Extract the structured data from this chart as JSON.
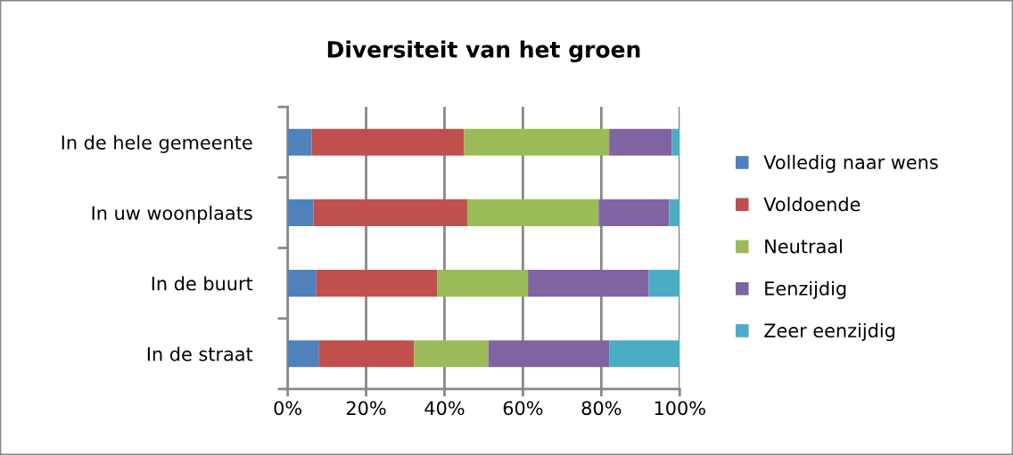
{
  "chart_data": {
    "type": "bar",
    "orientation": "horizontal",
    "stacked": true,
    "title": "Diversiteit van het groen",
    "categories": [
      "In de hele gemeente",
      "In uw woonplaats",
      "In de buurt",
      "In de straat"
    ],
    "series": [
      {
        "name": "Volledig naar wens",
        "color": "#4f81bd",
        "values": [
          6.1,
          6.6,
          7.3,
          8.0
        ]
      },
      {
        "name": "Voldoende",
        "color": "#c0504d",
        "values": [
          38.9,
          39.2,
          30.9,
          24.2
        ]
      },
      {
        "name": "Neutraal",
        "color": "#9bbb59",
        "values": [
          37.0,
          33.5,
          23.1,
          19.0
        ]
      },
      {
        "name": "Eenzijdig",
        "color": "#8064a2",
        "values": [
          16.0,
          18.0,
          30.8,
          30.8
        ]
      },
      {
        "name": "Zeer eenzijdig",
        "color": "#4bacc6",
        "values": [
          2.0,
          2.7,
          7.9,
          18.0
        ]
      }
    ],
    "xlim": [
      0,
      100
    ],
    "xticks": [
      {
        "value": 0,
        "label": "0%"
      },
      {
        "value": 20,
        "label": "20%"
      },
      {
        "value": 40,
        "label": "40%"
      },
      {
        "value": 60,
        "label": "60%"
      },
      {
        "value": 80,
        "label": "80%"
      },
      {
        "value": 100,
        "label": "100%"
      }
    ],
    "grid": "x",
    "legend": "right"
  }
}
